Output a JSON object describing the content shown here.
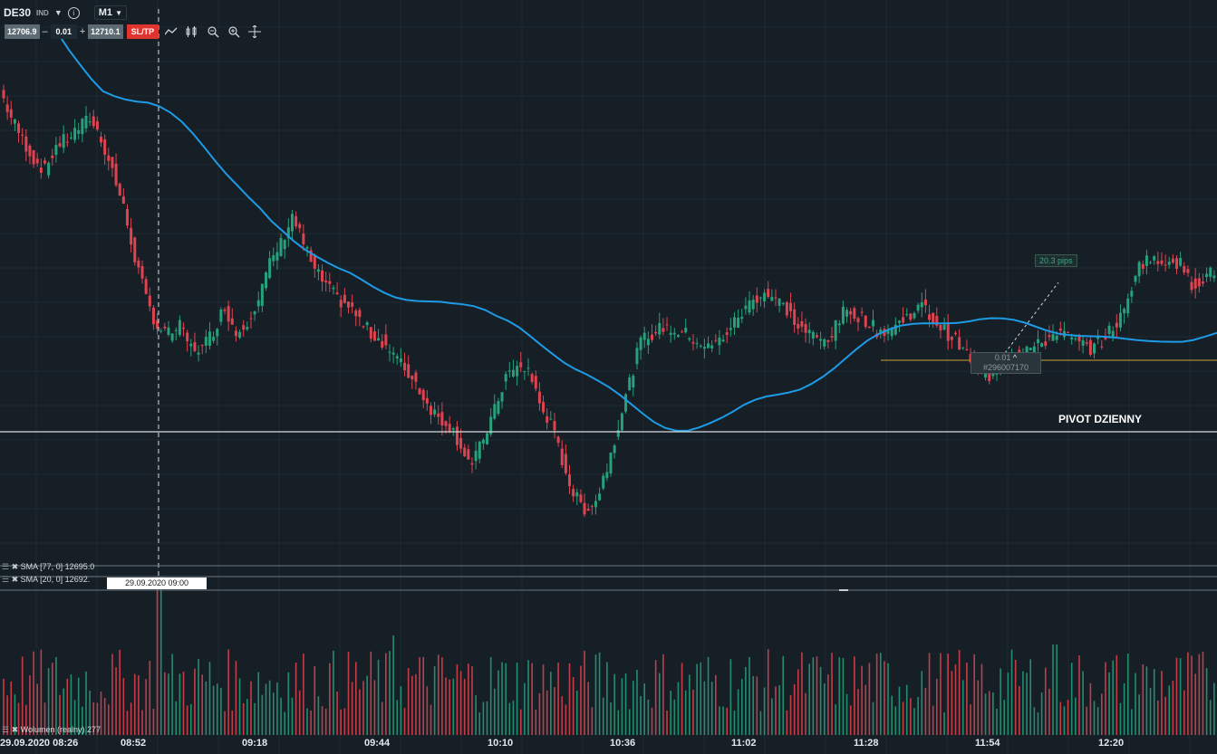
{
  "instrument": {
    "symbol": "DE30",
    "type": "IND",
    "timeframe": "M1"
  },
  "trade_panel": {
    "bid": "12706.9",
    "minus": "–",
    "volume": "0.01",
    "plus": "+",
    "ask": "12710.1",
    "sltp_label": "SL/TP"
  },
  "toolbar_icons": [
    "line-chart-icon",
    "candle-type-icon",
    "zoom-out-icon",
    "zoom-in-icon",
    "crosshair-icon"
  ],
  "indicators": {
    "sma77": "SMA [77, 0] 12695.0",
    "sma20": "SMA [20, 0] 12692.",
    "volume": "Wolumen (realny) 277"
  },
  "crosshair_date": "29.09.2020 09:00",
  "pivot_label": "PIVOT DZIENNY",
  "order": {
    "pips": "20.3 pips",
    "volume": "0.01",
    "id": "#296007170"
  },
  "time_axis": [
    "29.09.2020 08:26",
    "08:52",
    "09:18",
    "09:44",
    "10:10",
    "10:36",
    "11:02",
    "11:28",
    "11:54",
    "12:20"
  ],
  "colors": {
    "background": "#161f26",
    "bull": "#26a17b",
    "bear": "#e0434f",
    "sma": "#1e9be6",
    "pivot": "#d8dcdf",
    "order_line": "#c9a23b"
  },
  "chart_data": {
    "type": "candlestick",
    "close_series": [
      12720,
      12712,
      12706,
      12700,
      12697,
      12704,
      12706,
      12709,
      12712,
      12706,
      12697,
      12686,
      12672,
      12660,
      12652,
      12650,
      12652,
      12646,
      12646,
      12651,
      12658,
      12650,
      12654,
      12660,
      12670,
      12676,
      12684,
      12676,
      12668,
      12664,
      12660,
      12658,
      12654,
      12650,
      12648,
      12644,
      12640,
      12636,
      12630,
      12626,
      12624,
      12618,
      12612,
      12620,
      12628,
      12638,
      12640,
      12640,
      12630,
      12624,
      12614,
      12604,
      12600,
      12602,
      12612,
      12624,
      12636,
      12648,
      12650,
      12652,
      12651,
      12650,
      12648,
      12646,
      12648,
      12652,
      12656,
      12660,
      12662,
      12660,
      12657,
      12652,
      12650,
      12648,
      12650,
      12656,
      12656,
      12654,
      12651,
      12651,
      12653,
      12656,
      12658,
      12654,
      12651,
      12648,
      12644,
      12640,
      12638,
      12641,
      12644,
      12646,
      12646,
      12648,
      12651,
      12649,
      12647,
      12646,
      12648,
      12652,
      12656,
      12668,
      12672,
      12670,
      12672,
      12670,
      12664,
      12666,
      12668
    ]
  }
}
